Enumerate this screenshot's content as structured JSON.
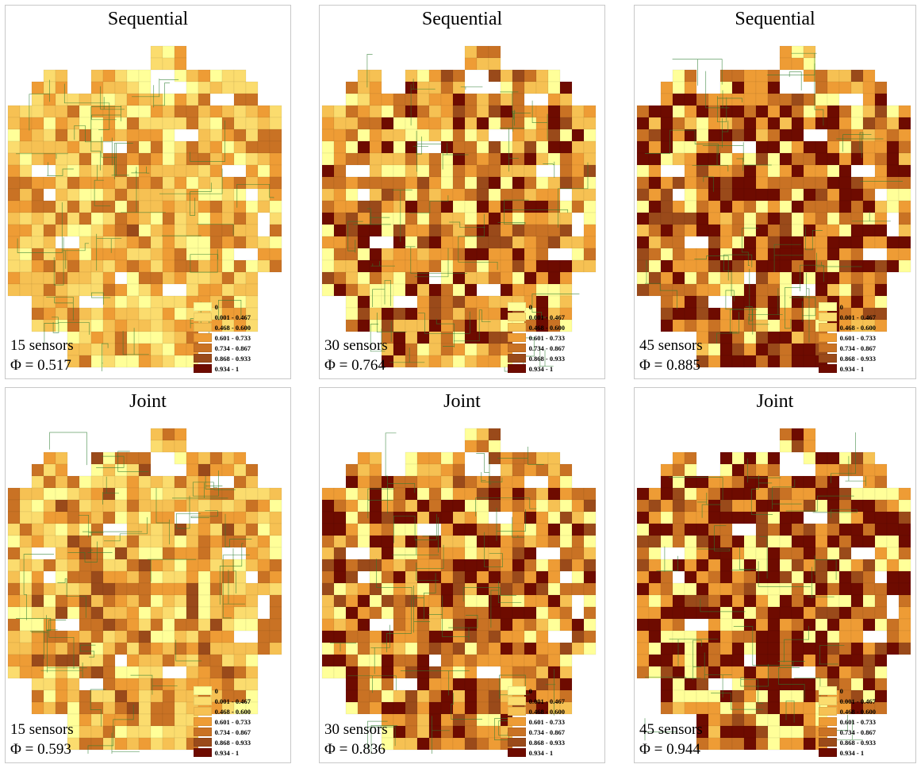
{
  "legend": {
    "labels": [
      "0",
      "0.001 - 0.467",
      "0.468 - 0.600",
      "0.601 - 0.733",
      "0.734 - 0.867",
      "0.868 - 0.933",
      "0.934 - 1"
    ],
    "colors": [
      "#ffff99",
      "#fbdc6e",
      "#f6c153",
      "#ee9c35",
      "#c97224",
      "#9a4a1a",
      "#6e0b00"
    ]
  },
  "road_color": "#2e7d32",
  "panels": [
    {
      "title": "Sequential",
      "sensors": "15 sensors",
      "phi_symbol": "Φ",
      "phi_eq": "= 0.517",
      "coverage": 0.517,
      "seed": 11
    },
    {
      "title": "Sequential",
      "sensors": "30 sensors",
      "phi_symbol": "Φ",
      "phi_eq": "= 0.764",
      "coverage": 0.764,
      "seed": 23
    },
    {
      "title": "Sequential",
      "sensors": "45 sensors",
      "phi_symbol": "Φ",
      "phi_eq": "= 0.885",
      "coverage": 0.885,
      "seed": 37
    },
    {
      "title": "Joint",
      "sensors": "15 sensors",
      "phi_symbol": "Φ",
      "phi_eq": "= 0.593",
      "coverage": 0.593,
      "seed": 41
    },
    {
      "title": "Joint",
      "sensors": "30 sensors",
      "phi_symbol": "Φ",
      "phi_eq": "= 0.836",
      "coverage": 0.836,
      "seed": 53
    },
    {
      "title": "Joint",
      "sensors": "45 sensors",
      "phi_symbol": "Φ",
      "phi_eq": "= 0.944",
      "coverage": 0.944,
      "seed": 67
    }
  ]
}
